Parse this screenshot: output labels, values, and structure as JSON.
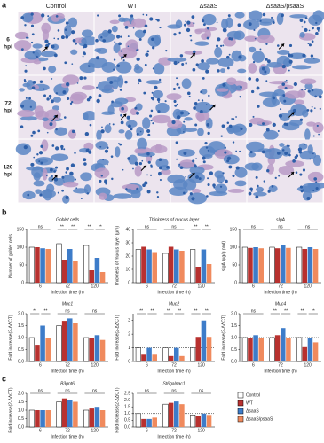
{
  "panels": {
    "a": "a",
    "b": "b",
    "c": "c"
  },
  "micrographs": {
    "columns": [
      "Control",
      "WT",
      "ΔsaaS",
      "ΔsaaS/psaaS"
    ],
    "rows": [
      [
        "6",
        "hpi"
      ],
      [
        "72",
        "hpi"
      ],
      [
        "120",
        "hpi"
      ]
    ]
  },
  "chart_data": [
    {
      "type": "bar",
      "title": "Goblet cells",
      "xlabel": "Infection time (h)",
      "ylabel": "Number of goblet cells",
      "categories": [
        "6",
        "72",
        "120"
      ],
      "series": [
        {
          "name": "Control",
          "color": "#ffffff",
          "values": [
            100,
            110,
            105
          ]
        },
        {
          "name": "WT",
          "color": "#b8312f",
          "values": [
            100,
            65,
            35
          ]
        },
        {
          "name": "ΔsaaS",
          "color": "#3d7cc9",
          "values": [
            97,
            95,
            70
          ]
        },
        {
          "name": "ΔsaaS/psaaS",
          "color": "#f08a5d",
          "values": [
            95,
            60,
            30
          ]
        }
      ],
      "ylim": [
        0,
        150
      ],
      "yticks": [
        0,
        50,
        100,
        150
      ],
      "sig": [
        [
          "ns"
        ],
        [
          "**",
          "**"
        ],
        [
          "**",
          "**"
        ]
      ]
    },
    {
      "type": "bar",
      "title": "Thickness of mucus layer",
      "xlabel": "Infection time (h)",
      "ylabel": "Thickness of mucus layer (μm)",
      "categories": [
        "6",
        "72",
        "120"
      ],
      "series": [
        {
          "name": "Control",
          "color": "#ffffff",
          "values": [
            25,
            22,
            25
          ]
        },
        {
          "name": "WT",
          "color": "#b8312f",
          "values": [
            27,
            27,
            12
          ]
        },
        {
          "name": "ΔsaaS",
          "color": "#3d7cc9",
          "values": [
            25,
            25,
            25
          ]
        },
        {
          "name": "ΔsaaS/psaaS",
          "color": "#f08a5d",
          "values": [
            23,
            24,
            14
          ]
        }
      ],
      "ylim": [
        0,
        40
      ],
      "yticks": [
        0,
        10,
        20,
        30,
        40
      ],
      "sig": [
        [
          "ns"
        ],
        [
          "ns"
        ],
        [
          "**",
          "**"
        ]
      ]
    },
    {
      "type": "bar",
      "title": "sIgA",
      "xlabel": "Infection time (h)",
      "ylabel": "sIgA (μg/g prot)",
      "categories": [
        "6",
        "72",
        "120"
      ],
      "series": [
        {
          "name": "Control",
          "color": "#ffffff",
          "values": [
            100,
            100,
            100
          ]
        },
        {
          "name": "WT",
          "color": "#b8312f",
          "values": [
            98,
            97,
            95
          ]
        },
        {
          "name": "ΔsaaS",
          "color": "#3d7cc9",
          "values": [
            100,
            105,
            100
          ]
        },
        {
          "name": "ΔsaaS/psaaS",
          "color": "#f08a5d",
          "values": [
            97,
            98,
            95
          ]
        }
      ],
      "ylim": [
        0,
        150
      ],
      "yticks": [
        0,
        50,
        100,
        150
      ],
      "sig": [
        [
          "ns"
        ],
        [
          "ns"
        ],
        [
          "ns"
        ]
      ]
    },
    {
      "type": "bar",
      "title": "Muc1",
      "xlabel": "Infection time (h)",
      "ylabel": "Fold increase(2-ΔΔCT)",
      "categories": [
        "6",
        "72",
        "120"
      ],
      "series": [
        {
          "name": "Control",
          "color": "#ffffff",
          "values": [
            1.0,
            1.5,
            1.0
          ]
        },
        {
          "name": "WT",
          "color": "#b8312f",
          "values": [
            0.7,
            1.7,
            1.0
          ]
        },
        {
          "name": "ΔsaaS",
          "color": "#3d7cc9",
          "values": [
            1.5,
            1.8,
            1.1
          ]
        },
        {
          "name": "ΔsaaS/psaaS",
          "color": "#f08a5d",
          "values": [
            1.0,
            1.6,
            0.9
          ]
        }
      ],
      "ylim": [
        0,
        2
      ],
      "yticks": [
        {
          "value": 0,
          "label": "0.0"
        },
        0.5,
        {
          "value": 1,
          "label": "1.0"
        },
        1.5,
        {
          "value": 2,
          "label": "2.0"
        }
      ],
      "sig": [
        [
          "**",
          "**"
        ],
        [
          "ns"
        ],
        [
          "ns"
        ]
      ]
    },
    {
      "type": "bar",
      "title": "Muc2",
      "xlabel": "Infection time (h)",
      "ylabel": "Fold increase(2-ΔΔCT)",
      "categories": [
        "6",
        "72",
        "120"
      ],
      "series": [
        {
          "name": "Control",
          "color": "#ffffff",
          "values": [
            1.0,
            1.0,
            1.0
          ]
        },
        {
          "name": "WT",
          "color": "#b8312f",
          "values": [
            0.5,
            0.4,
            1.8
          ]
        },
        {
          "name": "ΔsaaS",
          "color": "#3d7cc9",
          "values": [
            1.0,
            1.0,
            3.0
          ]
        },
        {
          "name": "ΔsaaS/psaaS",
          "color": "#f08a5d",
          "values": [
            0.5,
            0.4,
            1.8
          ]
        }
      ],
      "ylim": [
        0,
        3.5
      ],
      "yticks": [
        0,
        1,
        2,
        3
      ],
      "refline": 1,
      "sig": [
        [
          "**",
          "**"
        ],
        [
          "**",
          "**"
        ],
        [
          "**",
          "**"
        ]
      ]
    },
    {
      "type": "bar",
      "title": "Muc4",
      "xlabel": "Infection time (h)",
      "ylabel": "Fold increase(2-ΔΔCT)",
      "categories": [
        "6",
        "72",
        "120"
      ],
      "series": [
        {
          "name": "Control",
          "color": "#ffffff",
          "values": [
            1.0,
            1.0,
            1.0
          ]
        },
        {
          "name": "WT",
          "color": "#b8312f",
          "values": [
            1.0,
            1.1,
            0.6
          ]
        },
        {
          "name": "ΔsaaS",
          "color": "#3d7cc9",
          "values": [
            1.1,
            1.4,
            1.0
          ]
        },
        {
          "name": "ΔsaaS/psaaS",
          "color": "#f08a5d",
          "values": [
            1.0,
            1.0,
            0.8
          ]
        }
      ],
      "ylim": [
        0,
        2
      ],
      "yticks": [
        {
          "value": 0,
          "label": "0.0"
        },
        0.5,
        {
          "value": 1,
          "label": "1.0"
        },
        1.5,
        {
          "value": 2,
          "label": "2.0"
        }
      ],
      "refline": 1,
      "sig": [
        [
          "ns"
        ],
        [
          "**",
          "**"
        ],
        [
          "**",
          "**"
        ]
      ]
    },
    {
      "type": "bar",
      "title": "B3gnt6",
      "xlabel": "Infection time (h)",
      "ylabel": "Fold increase(2-ΔΔCT)",
      "categories": [
        "6",
        "72",
        "120"
      ],
      "series": [
        {
          "name": "Control",
          "color": "#ffffff",
          "values": [
            1.0,
            1.5,
            1.0
          ]
        },
        {
          "name": "WT",
          "color": "#b8312f",
          "values": [
            1.0,
            1.7,
            1.1
          ]
        },
        {
          "name": "ΔsaaS",
          "color": "#3d7cc9",
          "values": [
            1.0,
            1.6,
            1.2
          ]
        },
        {
          "name": "ΔsaaS/psaaS",
          "color": "#f08a5d",
          "values": [
            1.0,
            1.5,
            1.0
          ]
        }
      ],
      "ylim": [
        0,
        2
      ],
      "yticks": [
        {
          "value": 0,
          "label": "0.0"
        },
        0.5,
        {
          "value": 1,
          "label": "1.0"
        },
        1.5,
        {
          "value": 2,
          "label": "2.0"
        }
      ],
      "sig": [
        [
          "ns"
        ],
        [
          "ns"
        ],
        [
          "ns"
        ]
      ]
    },
    {
      "type": "bar",
      "title": "St6galnac1",
      "xlabel": "Infection time (h)",
      "ylabel": "Fold increase(2-ΔΔCT)",
      "categories": [
        "6",
        "72",
        "120"
      ],
      "series": [
        {
          "name": "Control",
          "color": "#ffffff",
          "values": [
            1.0,
            1.7,
            0.9
          ]
        },
        {
          "name": "WT",
          "color": "#b8312f",
          "values": [
            0.6,
            1.8,
            0.8
          ]
        },
        {
          "name": "ΔsaaS",
          "color": "#3d7cc9",
          "values": [
            0.6,
            1.9,
            1.0
          ]
        },
        {
          "name": "ΔsaaS/psaaS",
          "color": "#f08a5d",
          "values": [
            0.7,
            1.7,
            0.9
          ]
        }
      ],
      "ylim": [
        0,
        2.5
      ],
      "yticks": [
        {
          "value": 0,
          "label": "0.0"
        },
        0.5,
        {
          "value": 1,
          "label": "1.0"
        },
        1.5,
        {
          "value": 2,
          "label": "2.0"
        },
        2.5
      ],
      "refline": 1,
      "sig": [
        [
          "ns"
        ],
        [
          "ns"
        ],
        [
          "ns"
        ]
      ]
    }
  ]
}
